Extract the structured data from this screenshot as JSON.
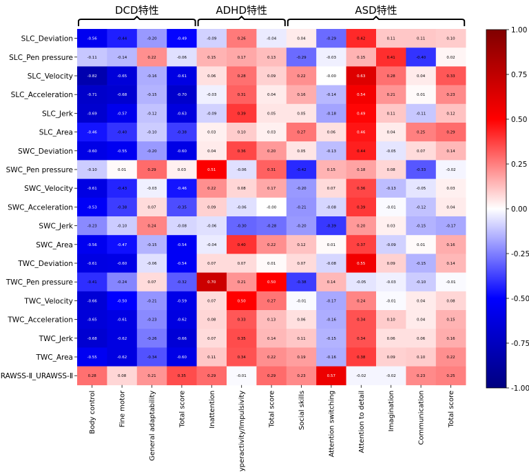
{
  "chart_data": {
    "type": "heatmap",
    "groups": [
      {
        "label": "DCD特性",
        "start": 0,
        "end": 3
      },
      {
        "label": "ADHD特性",
        "start": 4,
        "end": 6
      },
      {
        "label": "ASD特性",
        "start": 7,
        "end": 12
      }
    ],
    "rows": [
      "SLC_Deviation",
      "SLC_Pen pressure",
      "SLC_Velocity",
      "SLC_Acceleration",
      "SLC_Jerk",
      "SLC_Area",
      "SWC_Deviation",
      "SWC_Pen pressure",
      "SWC_Velocity",
      "SWC_Acceleration",
      "SWC_Jerk",
      "SWC_Area",
      "TWC_Deviation",
      "TWC_Pen pressure",
      "TWC_Velocity",
      "TWC_Acceleration",
      "TWC_Jerk",
      "TWC_Area",
      "URAWSS-Ⅱ_URAWSS-Ⅱ"
    ],
    "columns": [
      "Body control",
      "Fine motor",
      "General adaptability",
      "Total score",
      "Inattention",
      "Hyperactivity/Impulsivity",
      "Total score",
      "Social skills",
      "Attention switching",
      "Attention to detail",
      "Imagination",
      "Communication",
      "Total score"
    ],
    "values": [
      [
        "-0.56",
        "-0.44",
        "-0.20",
        "-0.49",
        "-0.09",
        "0.26",
        "-0.04",
        "0.04",
        "-0.29",
        "0.42",
        "0.11",
        "0.11",
        "0.10"
      ],
      [
        "-0.11",
        "-0.14",
        "0.22",
        "-0.06",
        "0.15",
        "0.17",
        "0.13",
        "-0.29",
        "-0.03",
        "0.15",
        "0.41",
        "-0.40",
        "0.02"
      ],
      [
        "-0.82",
        "-0.65",
        "-0.16",
        "-0.61",
        "0.06",
        "0.28",
        "0.09",
        "0.22",
        "-0.00",
        "0.63",
        "0.28",
        "0.04",
        "0.33"
      ],
      [
        "-0.71",
        "-0.68",
        "-0.15",
        "-0.70",
        "-0.03",
        "0.31",
        "0.04",
        "0.16",
        "-0.14",
        "0.54",
        "0.21",
        "0.01",
        "0.23"
      ],
      [
        "-0.69",
        "-0.57",
        "-0.12",
        "-0.63",
        "-0.09",
        "0.39",
        "0.05",
        "0.05",
        "-0.18",
        "0.49",
        "0.11",
        "-0.11",
        "0.12"
      ],
      [
        "-0.46",
        "-0.40",
        "-0.10",
        "-0.38",
        "0.03",
        "0.10",
        "0.03",
        "0.27",
        "0.06",
        "0.46",
        "0.04",
        "0.25",
        "0.29"
      ],
      [
        "-0.60",
        "-0.55",
        "-0.20",
        "-0.60",
        "0.04",
        "0.36",
        "0.20",
        "0.05",
        "-0.13",
        "0.44",
        "-0.05",
        "0.07",
        "0.14"
      ],
      [
        "-0.10",
        "0.01",
        "0.29",
        "0.03",
        "0.51",
        "-0.06",
        "0.31",
        "-0.42",
        "0.15",
        "0.18",
        "0.08",
        "-0.33",
        "-0.02"
      ],
      [
        "-0.61",
        "-0.43",
        "-0.03",
        "-0.46",
        "0.22",
        "0.08",
        "0.17",
        "-0.20",
        "0.07",
        "0.36",
        "-0.13",
        "-0.05",
        "0.03"
      ],
      [
        "-0.53",
        "-0.38",
        "0.07",
        "-0.35",
        "0.09",
        "-0.06",
        "-0.00",
        "-0.21",
        "-0.08",
        "0.39",
        "-0.01",
        "-0.12",
        "0.04"
      ],
      [
        "-0.23",
        "-0.10",
        "0.24",
        "-0.08",
        "-0.06",
        "-0.30",
        "-0.28",
        "-0.20",
        "-0.39",
        "0.20",
        "0.03",
        "-0.15",
        "-0.17"
      ],
      [
        "-0.56",
        "-0.47",
        "-0.15",
        "-0.54",
        "-0.04",
        "0.40",
        "0.22",
        "0.12",
        "0.01",
        "0.37",
        "-0.09",
        "0.01",
        "0.16"
      ],
      [
        "-0.61",
        "-0.60",
        "-0.06",
        "-0.54",
        "0.07",
        "0.07",
        "0.01",
        "0.07",
        "-0.08",
        "0.55",
        "0.09",
        "-0.15",
        "0.14"
      ],
      [
        "-0.41",
        "-0.24",
        "0.07",
        "-0.32",
        "0.70",
        "0.21",
        "0.50",
        "-0.38",
        "0.14",
        "-0.05",
        "-0.03",
        "-0.10",
        "-0.01"
      ],
      [
        "-0.66",
        "-0.50",
        "-0.21",
        "-0.59",
        "0.07",
        "0.50",
        "0.27",
        "-0.01",
        "-0.17",
        "0.24",
        "-0.01",
        "0.04",
        "0.08"
      ],
      [
        "-0.65",
        "-0.61",
        "-0.23",
        "-0.62",
        "0.08",
        "0.33",
        "0.13",
        "0.06",
        "-0.16",
        "0.34",
        "0.10",
        "0.04",
        "0.15"
      ],
      [
        "-0.68",
        "-0.62",
        "-0.26",
        "-0.66",
        "0.07",
        "0.35",
        "0.14",
        "0.11",
        "-0.15",
        "0.34",
        "0.06",
        "0.06",
        "0.16"
      ],
      [
        "-0.55",
        "-0.62",
        "-0.34",
        "-0.60",
        "0.11",
        "0.34",
        "0.22",
        "0.19",
        "-0.16",
        "0.38",
        "0.09",
        "0.10",
        "0.22"
      ],
      [
        "0.28",
        "0.08",
        "0.21",
        "0.35",
        "0.29",
        "-0.01",
        "0.29",
        "0.23",
        "0.57",
        "-0.02",
        "-0.02",
        "0.23",
        "0.25"
      ]
    ],
    "colormap": "bwr",
    "vmin": -1.0,
    "vmax": 1.0,
    "colorbar_ticks": [
      "1.00",
      "0.75",
      "0.50",
      "0.25",
      "0.00",
      "-0.25",
      "-0.50",
      "-0.75",
      "-1.00"
    ],
    "colors": {
      "low": "#000080",
      "mid": "#ffffff",
      "high": "#800000"
    }
  }
}
